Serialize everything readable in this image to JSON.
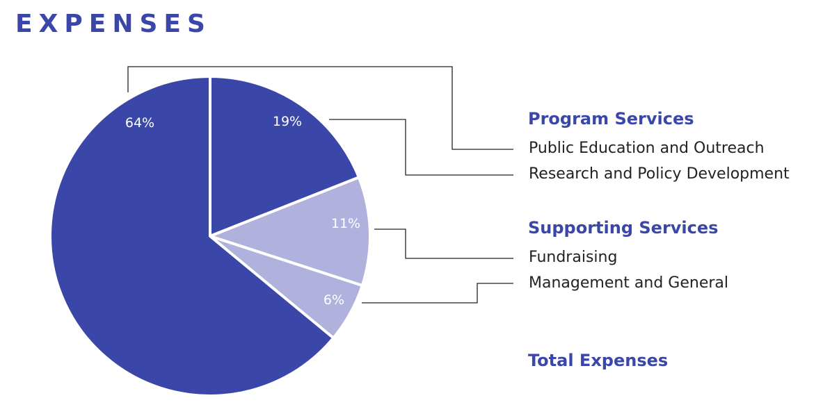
{
  "title": "EXPENSES",
  "colors": {
    "dark": "#3a47a8",
    "light": "#b1b1de",
    "text": "#222222"
  },
  "chart_data": {
    "type": "pie",
    "title": "EXPENSES",
    "slices": [
      {
        "label": "Research and Policy Development",
        "value": 19,
        "display": "19%",
        "color": "#3a47a8"
      },
      {
        "label": "Fundraising",
        "value": 11,
        "display": "11%",
        "color": "#b1b1de"
      },
      {
        "label": "Management and General",
        "value": 6,
        "display": "6%",
        "color": "#b1b1de"
      },
      {
        "label": "Public Education and Outreach",
        "value": 64,
        "display": "64%",
        "color": "#3a47a8"
      }
    ],
    "groups": [
      {
        "heading": "Program Services",
        "items": [
          "Public Education and Outreach",
          "Research and Policy Development"
        ]
      },
      {
        "heading": "Supporting Services",
        "items": [
          "Fundraising",
          "Management and General"
        ]
      }
    ],
    "total_label": "Total Expenses"
  }
}
